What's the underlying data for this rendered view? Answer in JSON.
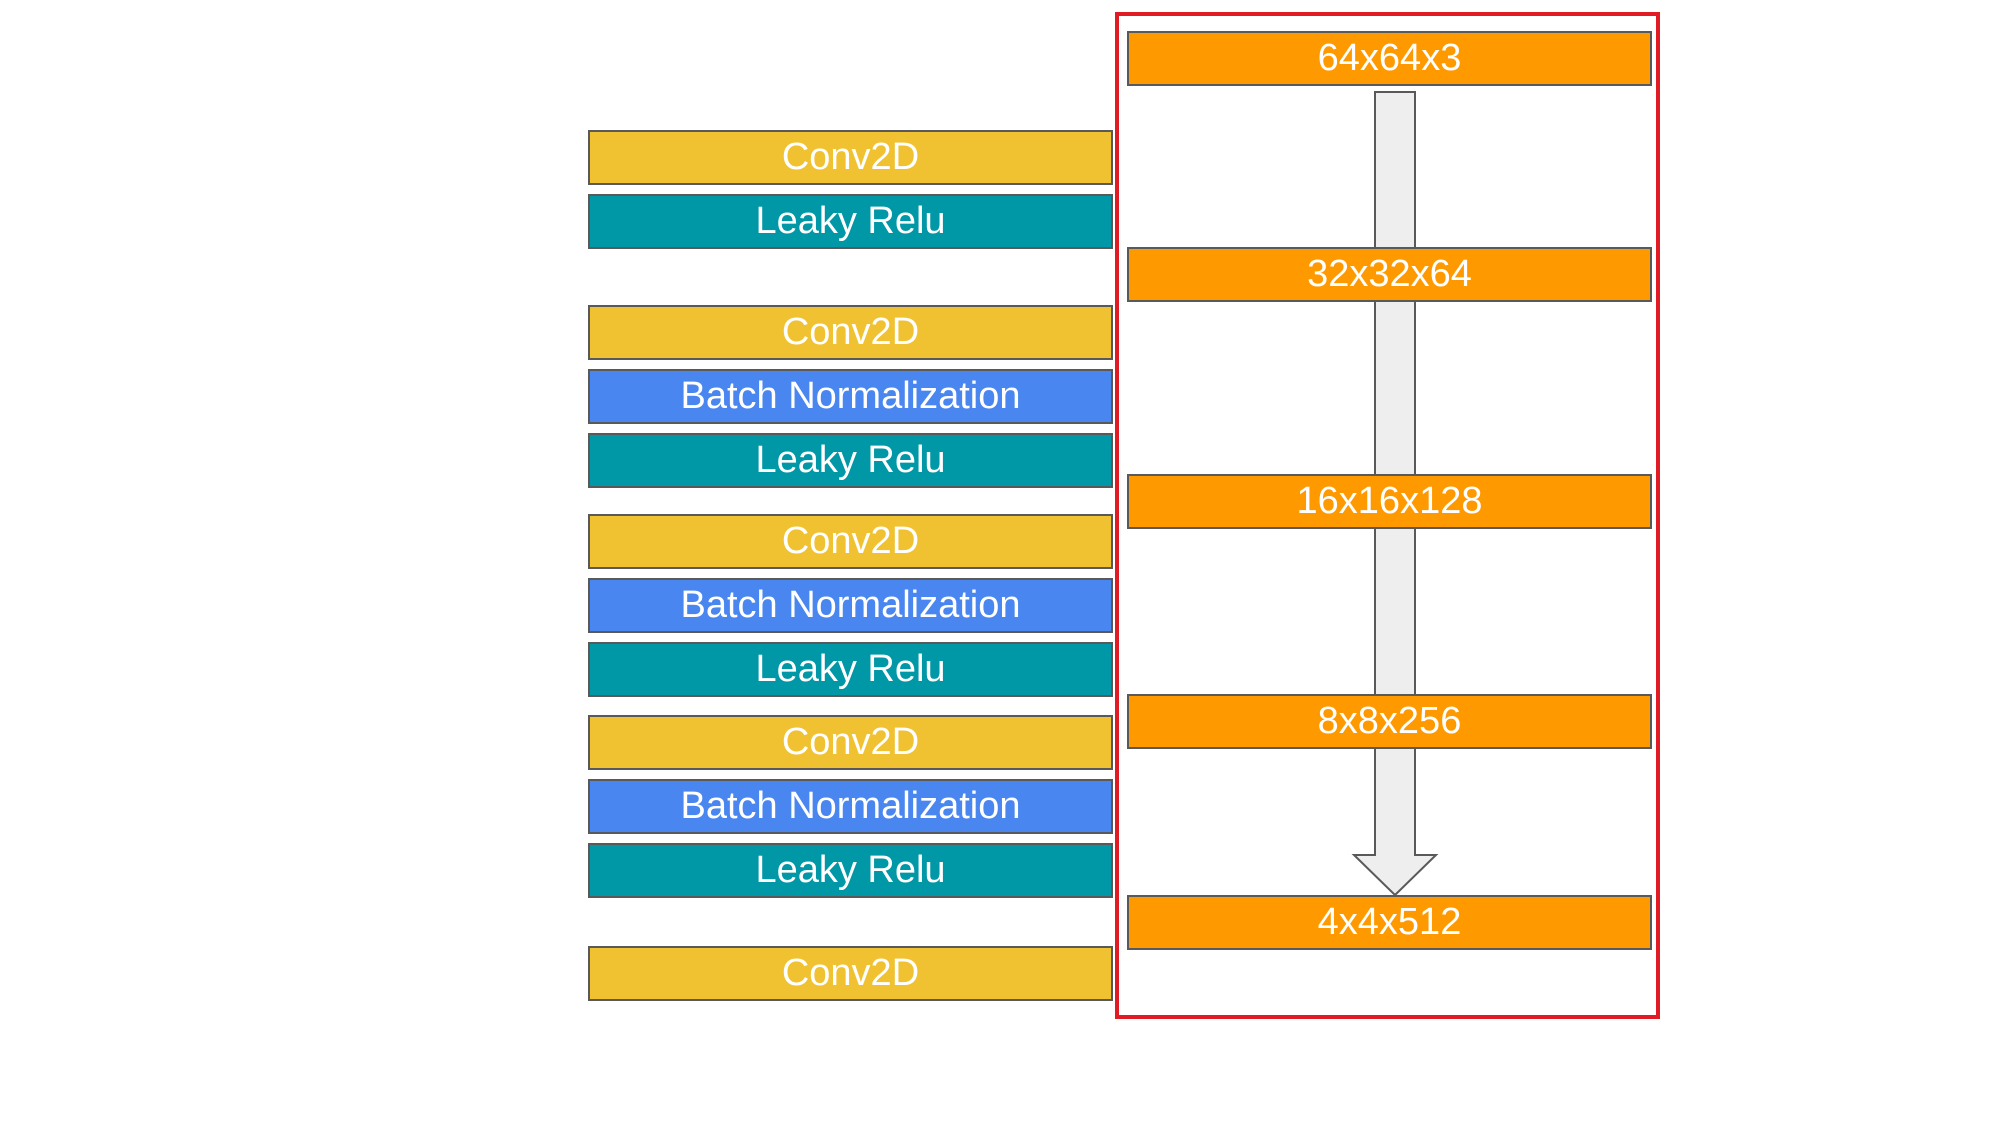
{
  "layers": [
    {
      "type": "conv",
      "label": "Conv2D"
    },
    {
      "type": "relu",
      "label": "Leaky Relu"
    },
    {
      "type": "conv",
      "label": "Conv2D"
    },
    {
      "type": "bn",
      "label": "Batch Normalization"
    },
    {
      "type": "relu",
      "label": "Leaky Relu"
    },
    {
      "type": "conv",
      "label": "Conv2D"
    },
    {
      "type": "bn",
      "label": "Batch Normalization"
    },
    {
      "type": "relu",
      "label": "Leaky Relu"
    },
    {
      "type": "conv",
      "label": "Conv2D"
    },
    {
      "type": "bn",
      "label": "Batch Normalization"
    },
    {
      "type": "relu",
      "label": "Leaky Relu"
    },
    {
      "type": "conv",
      "label": "Conv2D"
    }
  ],
  "shapes": [
    "64x64x3",
    "32x32x64",
    "16x16x128",
    "8x8x256",
    "4x4x512"
  ],
  "colors": {
    "conv": "#f0c232",
    "batch_normalization": "#4a86f0",
    "leaky_relu": "#0097a6",
    "shape": "#ff9900",
    "frame": "#e01b24",
    "arrow_fill": "#eeeeee",
    "arrow_stroke": "#595959"
  }
}
